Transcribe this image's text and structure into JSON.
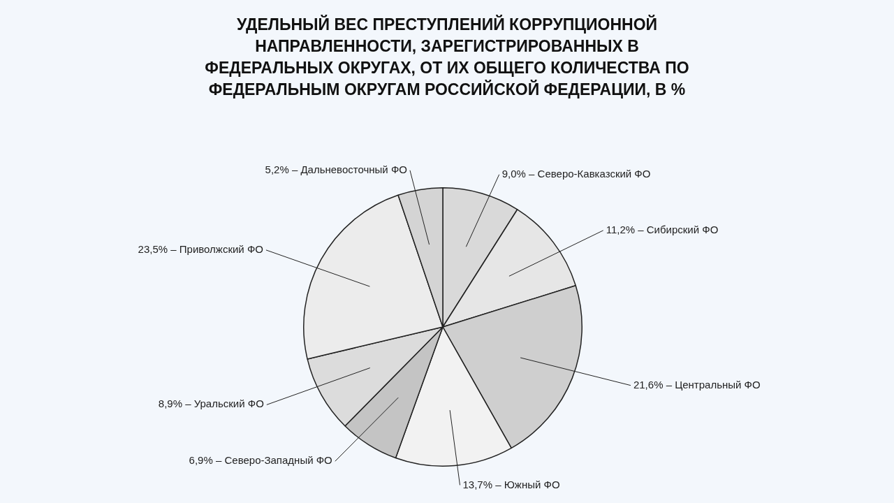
{
  "chart_data": {
    "type": "pie",
    "title": "УДЕЛЬНЫЙ ВЕС ПРЕСТУПЛЕНИЙ КОРРУПЦИОННОЙ НАПРАВЛЕННОСТИ, ЗАРЕГИСТРИРОВАННЫХ В ФЕДЕРАЛЬНЫХ ОКРУГАХ, ОТ ИХ ОБЩЕГО КОЛИЧЕСТВА ПО ФЕДЕРАЛЬНЫМ ОКРУГАМ РОССИЙСКОЙ ФЕДЕРАЦИИ, В %",
    "categories": [
      "Северо-Кавказский ФО",
      "Сибирский ФО",
      "Центральный ФО",
      "Южный ФО",
      "Северо-Западный ФО",
      "Уральский ФО",
      "Приволжский ФО",
      "Дальневосточный ФО"
    ],
    "values": [
      9.0,
      11.2,
      21.6,
      13.7,
      6.9,
      8.9,
      23.5,
      5.2
    ],
    "value_labels": [
      "9,0%",
      "11,2%",
      "21,6%",
      "13,7%",
      "6,9%",
      "8,9%",
      "23,5%",
      "5,2%"
    ],
    "colors": [
      "#d9d9d9",
      "#e6e6e6",
      "#cfcfcf",
      "#f2f2f2",
      "#c4c4c4",
      "#dcdcdc",
      "#ececec",
      "#d4d4d4"
    ],
    "legend": false
  }
}
